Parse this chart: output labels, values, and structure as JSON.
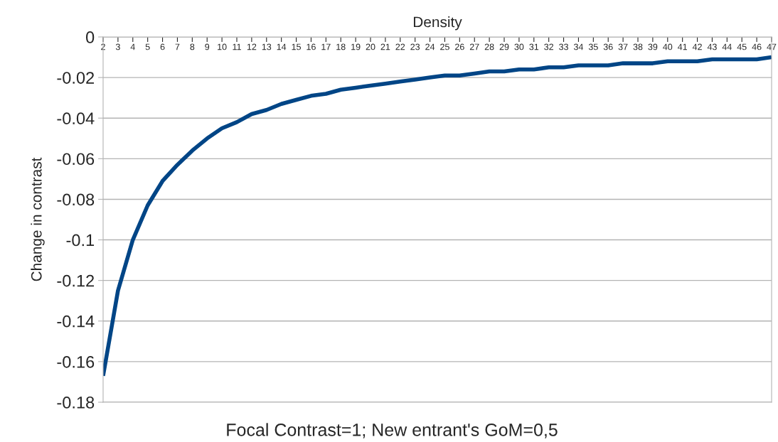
{
  "chart_data": {
    "type": "line",
    "xlabel": "Density",
    "ylabel": "Change in contrast",
    "annotations": [
      "Focal Contrast=1; New entrant's GoM=0,5"
    ],
    "categories": [
      "2",
      "3",
      "4",
      "5",
      "6",
      "7",
      "8",
      "9",
      "10",
      "11",
      "12",
      "13",
      "14",
      "15",
      "16",
      "17",
      "18",
      "19",
      "20",
      "21",
      "22",
      "23",
      "24",
      "25",
      "26",
      "27",
      "28",
      "29",
      "30",
      "31",
      "32",
      "33",
      "34",
      "35",
      "36",
      "37",
      "38",
      "39",
      "40",
      "41",
      "42",
      "43",
      "44",
      "45",
      "46",
      "47"
    ],
    "series": [
      {
        "color": "#004586",
        "values": [
          -0.167,
          -0.125,
          -0.1,
          -0.083,
          -0.071,
          -0.063,
          -0.056,
          -0.05,
          -0.045,
          -0.042,
          -0.038,
          -0.036,
          -0.033,
          -0.031,
          -0.029,
          -0.028,
          -0.026,
          -0.025,
          -0.024,
          -0.023,
          -0.022,
          -0.021,
          -0.02,
          -0.019,
          -0.019,
          -0.018,
          -0.017,
          -0.017,
          -0.016,
          -0.016,
          -0.015,
          -0.015,
          -0.014,
          -0.014,
          -0.014,
          -0.013,
          -0.013,
          -0.013,
          -0.012,
          -0.012,
          -0.012,
          -0.011,
          -0.011,
          -0.011,
          -0.011,
          -0.01
        ]
      }
    ],
    "ylim": [
      -0.18,
      0
    ],
    "yticks": [
      -0.18,
      -0.16,
      -0.14,
      -0.12,
      -0.1,
      -0.08,
      -0.06,
      -0.04,
      -0.02,
      0
    ],
    "grid": "y",
    "legend": false,
    "marker": "none",
    "line_style": "solid"
  }
}
